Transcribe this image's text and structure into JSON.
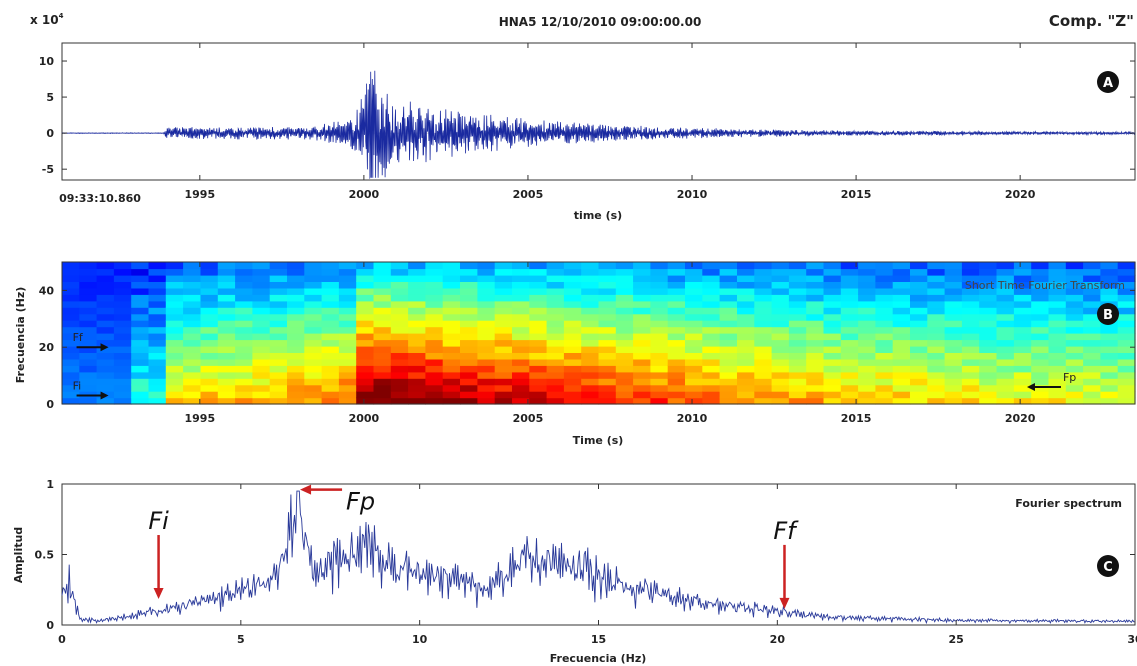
{
  "header": {
    "title": "HNA5 12/10/2010  09:00:00.00",
    "component": "Comp. \"Z\""
  },
  "chart_data": [
    {
      "type": "line",
      "panel_badge": "A",
      "exponent_label": "x 10",
      "exponent_power": "4",
      "start_time_label": "09:33:10.860",
      "xlabel": "time (s)",
      "ylabel": "",
      "xlim": [
        1990.8,
        2023.5
      ],
      "ylim": [
        -6.5,
        12.5
      ],
      "xticks": [
        "1995",
        "2000",
        "2005",
        "2010",
        "2015",
        "2020"
      ],
      "yticks": [
        "10",
        "5",
        "0",
        "-5"
      ],
      "line_color": "#1a2aa0",
      "envelope": {
        "x": [
          1990.8,
          1993.9,
          1994.0,
          1996,
          1998,
          1999.5,
          2000.0,
          2000.2,
          2000.5,
          2001,
          2002,
          2003,
          2004,
          2005,
          2006,
          2008,
          2010,
          2012,
          2015,
          2020,
          2023.5
        ],
        "amplitude": [
          0.05,
          0.05,
          0.9,
          0.9,
          1.0,
          1.8,
          6.0,
          11.5,
          7.0,
          5.0,
          4.0,
          3.2,
          2.6,
          2.0,
          1.7,
          1.1,
          0.8,
          0.55,
          0.35,
          0.25,
          0.2
        ]
      }
    },
    {
      "type": "heatmap",
      "panel_badge": "B",
      "title": "Short Time Fourier Transform",
      "xlabel": "Time (s)",
      "ylabel": "Frecuencia (Hz)",
      "xlim": [
        1990.8,
        2023.5
      ],
      "ylim": [
        0,
        50
      ],
      "xticks": [
        "1995",
        "2000",
        "2005",
        "2010",
        "2015",
        "2020"
      ],
      "yticks": [
        "40",
        "20",
        "0"
      ],
      "colormap": "jet",
      "annotations": [
        {
          "text": "Ff",
          "x": 1991.0,
          "y": 20
        },
        {
          "text": "Fi",
          "x": 1991.0,
          "y": 3
        },
        {
          "text": "Fp",
          "x": 2021.0,
          "y": 6
        }
      ],
      "intensity_model": {
        "t": [
          1990.8,
          1993.0,
          1993.1,
          1993.9,
          1994.0,
          1997,
          1999.8,
          2000.0,
          2002,
          2005,
          2008,
          2011,
          2014,
          2017,
          2020,
          2023.5
        ],
        "energy": [
          0.12,
          0.12,
          0.3,
          0.3,
          0.55,
          0.6,
          0.68,
          0.95,
          0.9,
          0.82,
          0.74,
          0.66,
          0.6,
          0.56,
          0.52,
          0.5
        ]
      }
    },
    {
      "type": "line",
      "panel_badge": "C",
      "title": "Fourier spectrum",
      "xlabel": "Frecuencia (Hz)",
      "ylabel": "Amplitud",
      "xlim": [
        0,
        30
      ],
      "ylim": [
        0,
        1
      ],
      "xticks": [
        "0",
        "5",
        "10",
        "15",
        "20",
        "25",
        "30"
      ],
      "yticks": [
        "1",
        "0.5",
        "0"
      ],
      "line_color": "#2a3a9a",
      "arrow_color": "#cc2222",
      "annotations": [
        {
          "text": "Fi",
          "x": 2.7,
          "y": 0.17
        },
        {
          "text": "Fp",
          "x": 6.6,
          "y": 0.96
        },
        {
          "text": "Ff",
          "x": 20.2,
          "y": 0.1
        }
      ],
      "envelope": {
        "x": [
          0,
          0.2,
          0.5,
          1,
          2,
          3,
          4,
          5,
          6,
          6.6,
          7,
          8,
          8.6,
          9,
          10,
          11,
          12,
          13,
          14,
          15,
          16,
          17,
          18,
          19,
          20,
          21,
          22,
          25,
          30
        ],
        "amplitude": [
          0.3,
          0.35,
          0.05,
          0.04,
          0.08,
          0.14,
          0.2,
          0.28,
          0.4,
          0.95,
          0.45,
          0.55,
          0.75,
          0.5,
          0.45,
          0.38,
          0.32,
          0.55,
          0.52,
          0.42,
          0.3,
          0.25,
          0.18,
          0.15,
          0.12,
          0.08,
          0.06,
          0.04,
          0.03
        ]
      }
    }
  ]
}
